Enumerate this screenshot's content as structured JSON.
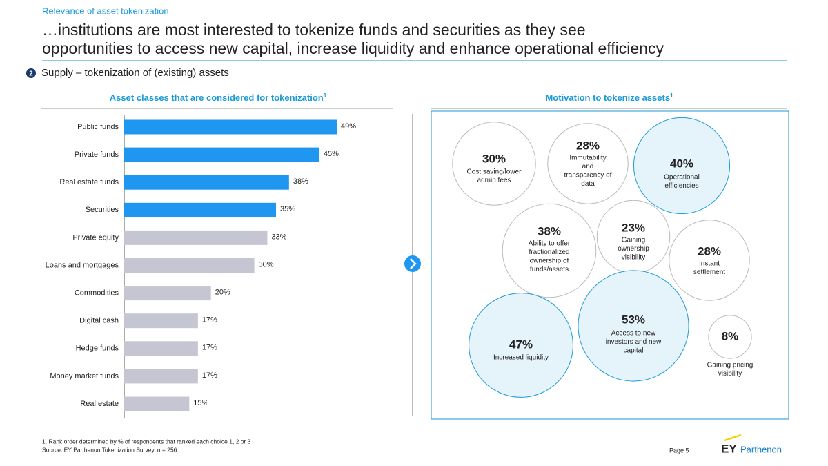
{
  "header": {
    "kicker": "Relevance of asset tokenization",
    "title": [
      "…institutions are most interested to tokenize funds and securities as they see",
      "opportunities to access new capital, increase liquidity and enhance operational efficiency"
    ],
    "section_number": "2",
    "section_label": "Supply – tokenization of (existing) assets"
  },
  "chart_data": [
    {
      "type": "hbar",
      "title": "Asset classes that are considered for tokenization",
      "title_note": "1",
      "categories": [
        "Public funds",
        "Private funds",
        "Real estate funds",
        "Securities",
        "Private equity",
        "Loans and mortgages",
        "Commodities",
        "Digital cash",
        "Hedge funds",
        "Money market funds",
        "Real estate"
      ],
      "values": [
        49,
        45,
        38,
        35,
        33,
        30,
        20,
        17,
        17,
        17,
        15
      ],
      "value_labels": [
        "49%",
        "45%",
        "38%",
        "35%",
        "33%",
        "30%",
        "20%",
        "17%",
        "17%",
        "17%",
        "15%"
      ],
      "colors": [
        "#1f97f0",
        "#1f97f0",
        "#1f97f0",
        "#1f97f0",
        "#c6c6d2",
        "#c6c6d2",
        "#c6c6d2",
        "#c6c6d2",
        "#c6c6d2",
        "#c6c6d2",
        "#c6c6d2"
      ]
    },
    {
      "type": "bubble",
      "title": "Motivation to tokenize assets",
      "title_note": "1",
      "categories": [
        [
          "Cost saving/lower",
          "admin fees"
        ],
        [
          "Immutability",
          "and",
          "transparency of",
          "data"
        ],
        [
          "Operational",
          "efficiencies"
        ],
        [
          "Ability to offer",
          "fractionalized",
          "ownership of",
          "funds/assets"
        ],
        [
          "Gaining",
          "ownership",
          "visibility"
        ],
        [
          "Instant",
          "settlement"
        ],
        [
          "Increased liquidity"
        ],
        [
          "Access to new",
          "investors and new",
          "capital"
        ],
        [
          "Gaining pricing",
          "visibility"
        ]
      ],
      "values": [
        30,
        28,
        40,
        38,
        23,
        28,
        47,
        53,
        8
      ],
      "value_labels": [
        "30%",
        "28%",
        "40%",
        "38%",
        "23%",
        "28%",
        "47%",
        "53%",
        "8%"
      ],
      "colors": [
        "#ffffff",
        "#ffffff",
        "#e5f3fb",
        "#ffffff",
        "#ffffff",
        "#ffffff",
        "#e5f3fb",
        "#e5f3fb",
        "#ffffff"
      ]
    }
  ],
  "footer": {
    "footnote": "1. Rank order determined by % of respondents that ranked each choice 1, 2 or 3",
    "source": "Source: EY Parthenon Tokenization Survey, n = 256",
    "page": "Page 5",
    "logo_brand": "EY",
    "logo_name": "Parthenon"
  }
}
